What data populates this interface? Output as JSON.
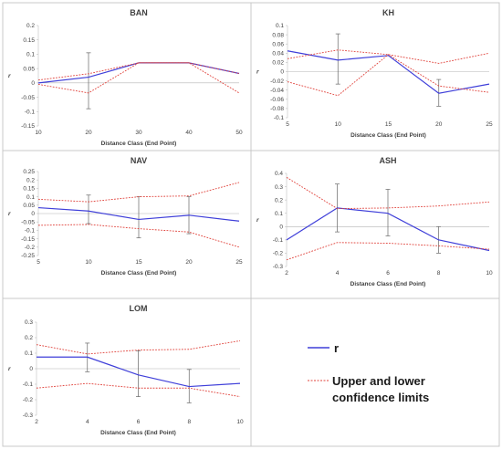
{
  "chart_data": [
    {
      "type": "line",
      "title": "BAN",
      "xlabel": "Distance Class (End Point)",
      "ylabel": "r",
      "x": [
        10,
        20,
        30,
        40,
        50
      ],
      "xticks": [
        "10",
        "20",
        "30",
        "40",
        "50"
      ],
      "ylim": [
        -0.15,
        0.2
      ],
      "yticks": [
        "0.2",
        "0.15",
        "0.1",
        "0.05",
        "0",
        "-0.05",
        "-0.1",
        "-0.15"
      ],
      "series": [
        {
          "name": "r",
          "values": [
            0.0,
            0.02,
            0.07,
            0.07,
            0.033
          ]
        },
        {
          "name": "Upper",
          "values": [
            0.01,
            0.032,
            0.07,
            0.07,
            0.033
          ]
        },
        {
          "name": "Lower",
          "values": [
            -0.005,
            -0.035,
            0.07,
            0.07,
            -0.035
          ]
        }
      ],
      "errorbars": [
        {
          "x": 20,
          "low": -0.09,
          "high": 0.105
        }
      ]
    },
    {
      "type": "line",
      "title": "KH",
      "xlabel": "Distance Class (End Point)",
      "ylabel": "r",
      "x": [
        5,
        10,
        15,
        20,
        25
      ],
      "xticks": [
        "5",
        "10",
        "15",
        "20",
        "25"
      ],
      "ylim": [
        -0.1,
        0.1
      ],
      "yticks": [
        "0.1",
        "0.08",
        "0.06",
        "0.04",
        "0.02",
        "0",
        "-0.02",
        "-0.04",
        "-0.06",
        "-0.08",
        "-0.1"
      ],
      "series": [
        {
          "name": "r",
          "values": [
            0.045,
            0.025,
            0.035,
            -0.047,
            -0.027
          ]
        },
        {
          "name": "Upper",
          "values": [
            0.028,
            0.047,
            0.037,
            0.018,
            0.04
          ]
        },
        {
          "name": "Lower",
          "values": [
            -0.022,
            -0.052,
            0.037,
            -0.031,
            -0.045
          ]
        }
      ],
      "errorbars": [
        {
          "x": 10,
          "low": -0.027,
          "high": 0.082
        },
        {
          "x": 20,
          "low": -0.075,
          "high": -0.017
        }
      ]
    },
    {
      "type": "line",
      "title": "NAV",
      "xlabel": "Distance Class (End Point)",
      "ylabel": "r",
      "x": [
        5,
        10,
        15,
        20,
        25
      ],
      "xticks": [
        "5",
        "10",
        "15",
        "20",
        "25"
      ],
      "ylim": [
        -0.25,
        0.25
      ],
      "yticks": [
        "0.25",
        "0.2",
        "0.15",
        "0.1",
        "0.05",
        "0",
        "-0.05",
        "-0.1",
        "-0.15",
        "-0.2",
        "-0.25"
      ],
      "series": [
        {
          "name": "r",
          "values": [
            0.035,
            0.015,
            -0.035,
            -0.01,
            -0.045
          ]
        },
        {
          "name": "Upper",
          "values": [
            0.085,
            0.07,
            0.1,
            0.105,
            0.185
          ]
        },
        {
          "name": "Lower",
          "values": [
            -0.07,
            -0.065,
            -0.09,
            -0.11,
            -0.2
          ]
        }
      ],
      "errorbars": [
        {
          "x": 10,
          "low": -0.06,
          "high": 0.11
        },
        {
          "x": 15,
          "low": -0.145,
          "high": 0.1
        },
        {
          "x": 20,
          "low": -0.12,
          "high": 0.1
        }
      ]
    },
    {
      "type": "line",
      "title": "ASH",
      "xlabel": "Distance Class (End Point)",
      "ylabel": "r",
      "x": [
        2,
        4,
        6,
        8,
        10
      ],
      "xticks": [
        "2",
        "4",
        "6",
        "8",
        "10"
      ],
      "ylim": [
        -0.3,
        0.4
      ],
      "yticks": [
        "0.4",
        "0.3",
        "0.2",
        "0.1",
        "0",
        "-0.1",
        "-0.2",
        "-0.3"
      ],
      "series": [
        {
          "name": "r",
          "values": [
            -0.1,
            0.14,
            0.1,
            -0.1,
            -0.18
          ]
        },
        {
          "name": "Upper",
          "values": [
            0.37,
            0.135,
            0.14,
            0.155,
            0.185
          ]
        },
        {
          "name": "Lower",
          "values": [
            -0.25,
            -0.12,
            -0.125,
            -0.145,
            -0.17
          ]
        }
      ],
      "errorbars": [
        {
          "x": 4,
          "low": -0.04,
          "high": 0.32
        },
        {
          "x": 6,
          "low": -0.07,
          "high": 0.28
        },
        {
          "x": 8,
          "low": -0.2,
          "high": 0.0
        }
      ]
    },
    {
      "type": "line",
      "title": "LOM",
      "xlabel": "Distance Class (End Point)",
      "ylabel": "r",
      "x": [
        2,
        4,
        6,
        8,
        10
      ],
      "xticks": [
        "2",
        "4",
        "6",
        "8",
        "10"
      ],
      "ylim": [
        -0.3,
        0.3
      ],
      "yticks": [
        "0.3",
        "0.2",
        "0.1",
        "0",
        "-0.1",
        "-0.2",
        "-0.3"
      ],
      "series": [
        {
          "name": "r",
          "values": [
            0.075,
            0.075,
            -0.04,
            -0.115,
            -0.095
          ]
        },
        {
          "name": "Upper",
          "values": [
            0.155,
            0.095,
            0.12,
            0.125,
            0.18
          ]
        },
        {
          "name": "Lower",
          "values": [
            -0.125,
            -0.095,
            -0.125,
            -0.125,
            -0.18
          ]
        }
      ],
      "errorbars": [
        {
          "x": 4,
          "low": -0.02,
          "high": 0.165
        },
        {
          "x": 6,
          "low": -0.18,
          "high": 0.115
        },
        {
          "x": 8,
          "low": -0.22,
          "high": -0.005
        }
      ]
    }
  ],
  "legend": {
    "items": [
      {
        "label": "r",
        "style": "solid",
        "color": "#3f3fd9"
      },
      {
        "label": "Upper and lower confidence limits",
        "line1": "Upper and lower",
        "line2": "confidence limits",
        "style": "dotted",
        "color": "#e0413a"
      }
    ]
  },
  "colors": {
    "r": "#3f3fd9",
    "limits": "#e0413a",
    "errorbar": "#666666",
    "zero": "#b5b5b5"
  }
}
